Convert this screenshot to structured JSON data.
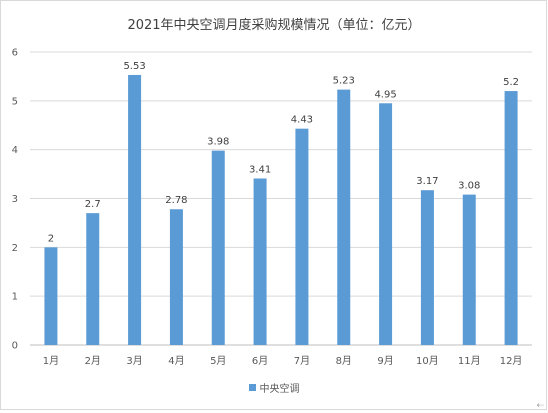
{
  "chart_data": {
    "type": "bar",
    "title": "2021年中央空调月度采购规模情况（单位：亿元）",
    "categories": [
      "1月",
      "2月",
      "3月",
      "4月",
      "5月",
      "6月",
      "7月",
      "8月",
      "9月",
      "10月",
      "11月",
      "12月"
    ],
    "series": [
      {
        "name": "中央空调",
        "values": [
          2,
          2.7,
          5.53,
          2.78,
          3.98,
          3.41,
          4.43,
          5.23,
          4.95,
          3.17,
          3.08,
          5.2
        ],
        "labels": [
          "2",
          "2.7",
          "5.53",
          "2.78",
          "3.98",
          "3.41",
          "4.43",
          "5.23",
          "4.95",
          "3.17",
          "3.08",
          "5.2"
        ],
        "color": "#5b9bd5"
      }
    ],
    "ylim": [
      0,
      6
    ],
    "yticks": [
      "0",
      "1",
      "2",
      "3",
      "4",
      "5",
      "6"
    ],
    "grid": true,
    "legend_position": "bottom"
  },
  "corner_icon": "resize-arrow-icon"
}
